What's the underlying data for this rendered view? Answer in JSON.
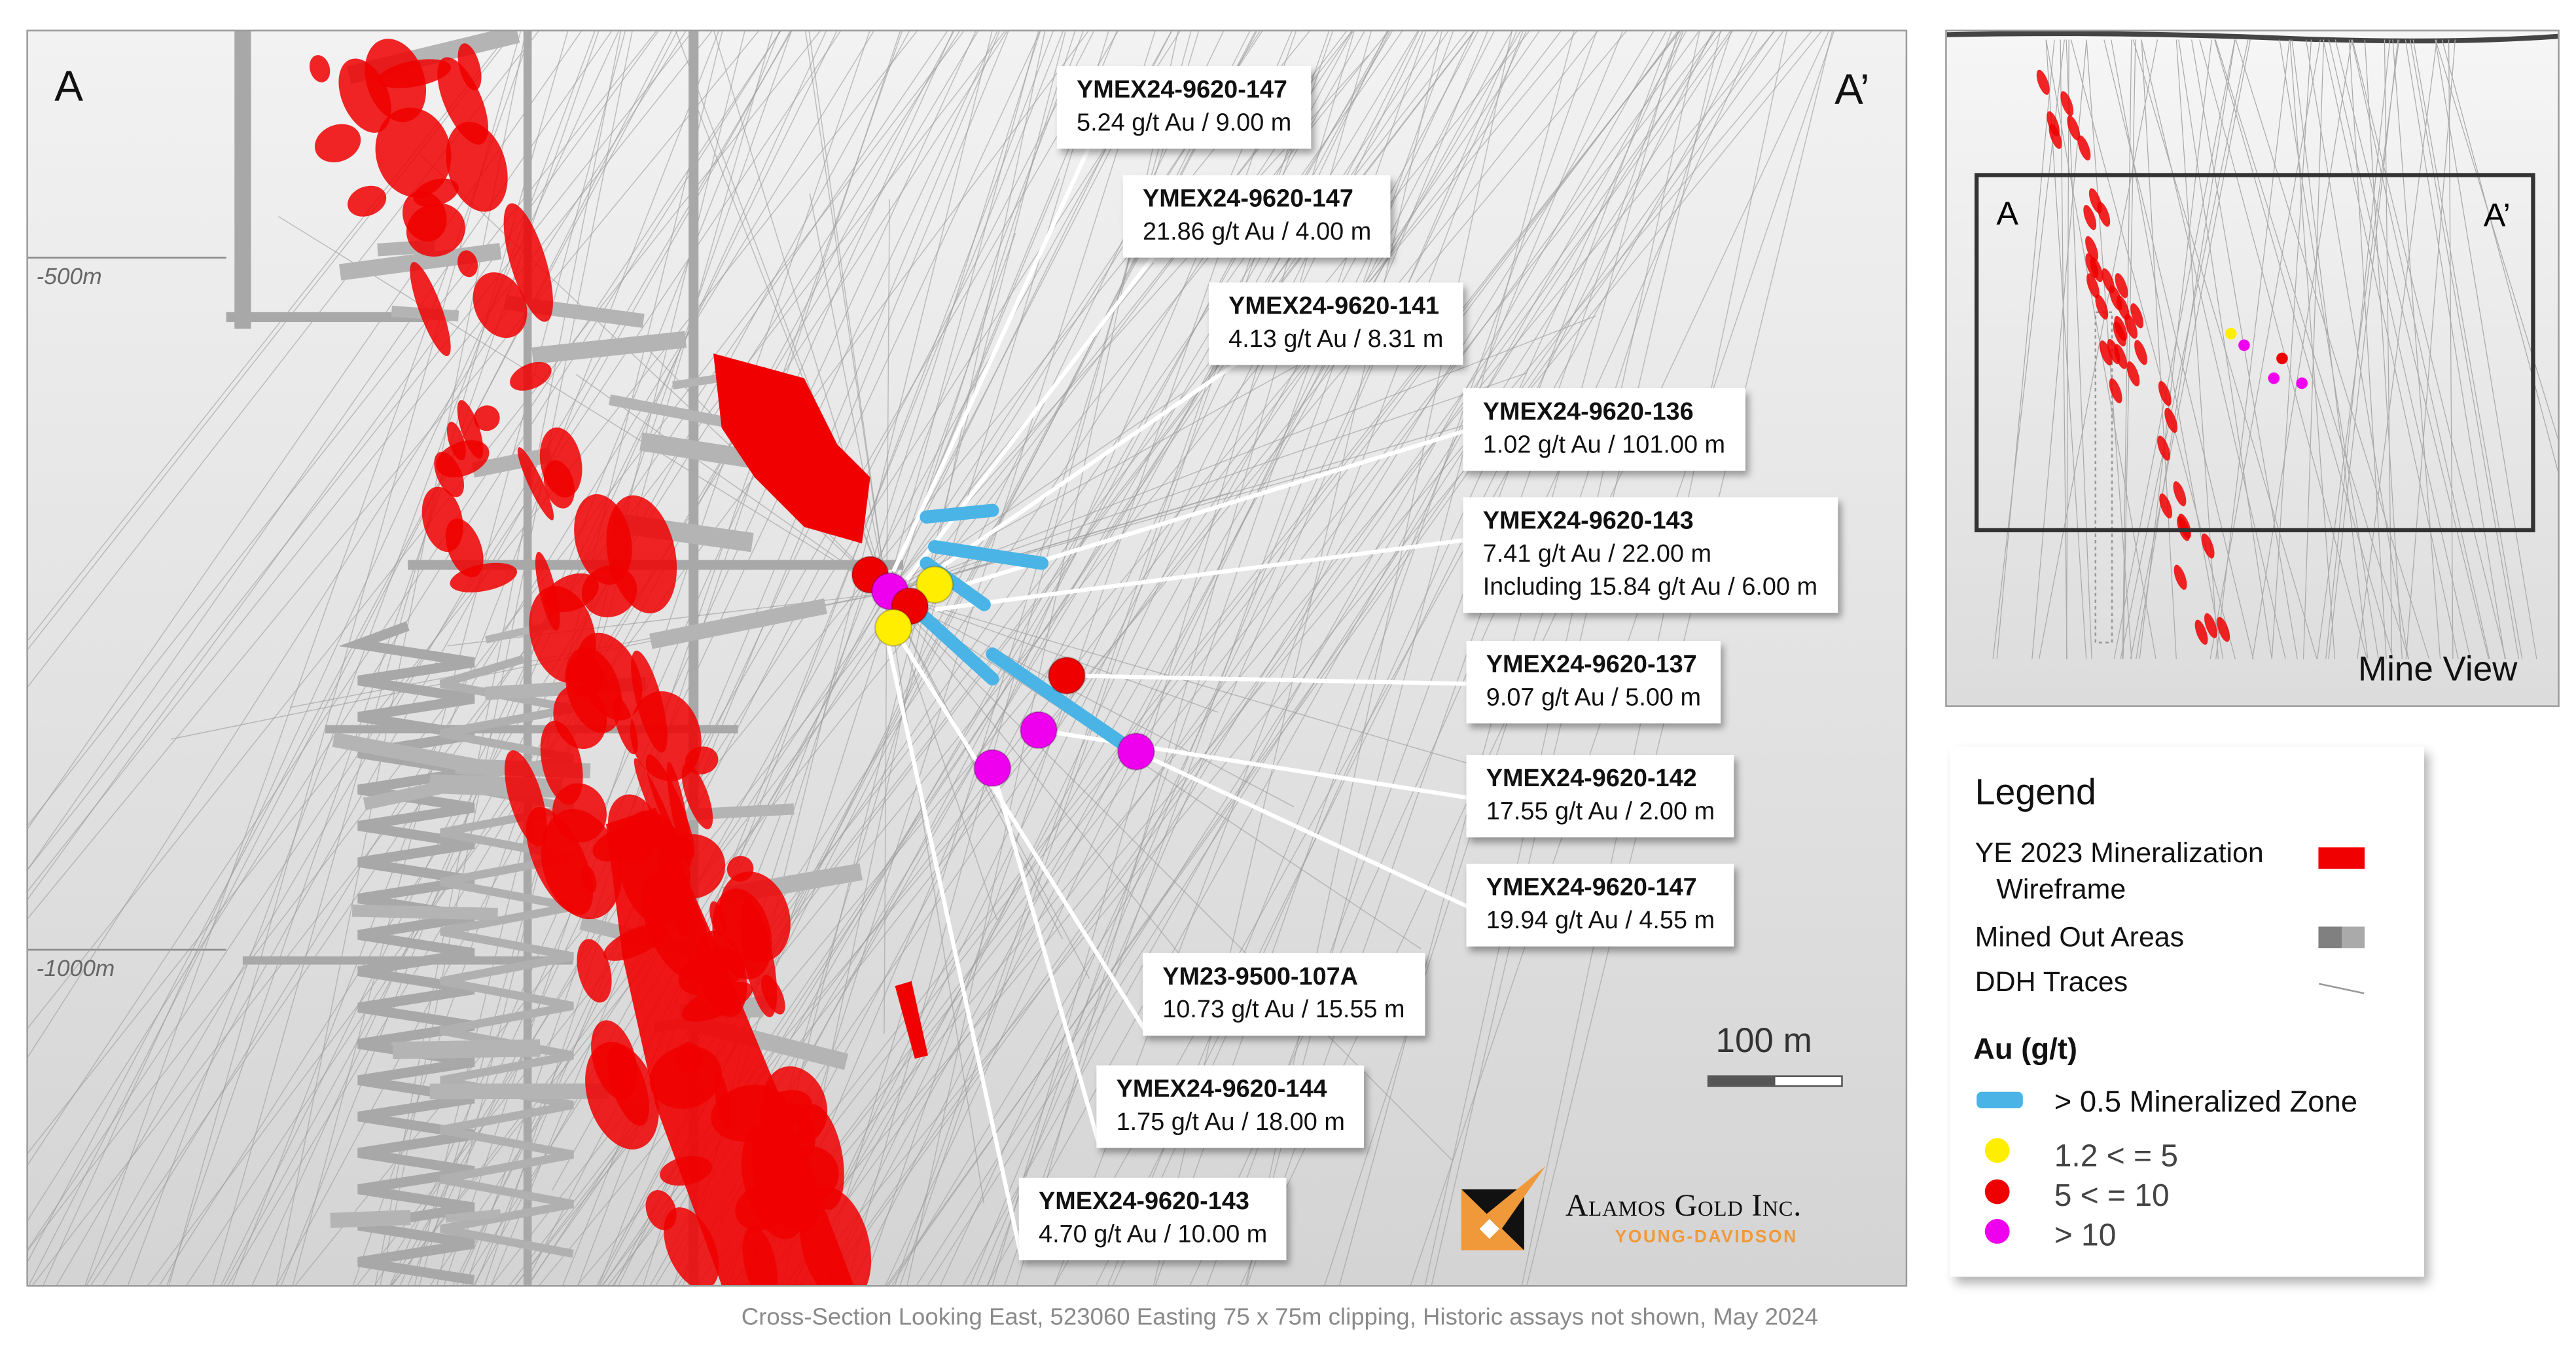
{
  "main_view": {
    "section_left": "A",
    "section_right": "A’",
    "depth_labels": [
      "-500m",
      "-1000m"
    ],
    "scale_bar": "100 m",
    "callouts": [
      {
        "hole": "YMEX24-9620-147",
        "lines": [
          "5.24 g/t Au / 9.00 m"
        ]
      },
      {
        "hole": "YMEX24-9620-147",
        "lines": [
          "21.86 g/t Au / 4.00 m"
        ]
      },
      {
        "hole": "YMEX24-9620-141",
        "lines": [
          "4.13 g/t Au / 8.31 m"
        ]
      },
      {
        "hole": "YMEX24-9620-136",
        "lines": [
          "1.02 g/t Au / 101.00 m"
        ]
      },
      {
        "hole": "YMEX24-9620-143",
        "lines": [
          "7.41 g/t Au / 22.00 m",
          "Including 15.84 g/t Au / 6.00 m"
        ]
      },
      {
        "hole": "YMEX24-9620-137",
        "lines": [
          "9.07 g/t Au / 5.00 m"
        ]
      },
      {
        "hole": "YMEX24-9620-142",
        "lines": [
          "17.55 g/t Au / 2.00 m"
        ]
      },
      {
        "hole": "YMEX24-9620-147",
        "lines": [
          "19.94 g/t Au / 4.55 m"
        ]
      },
      {
        "hole": "YM23-9500-107A",
        "lines": [
          "10.73 g/t Au / 15.55 m"
        ]
      },
      {
        "hole": "YMEX24-9620-144",
        "lines": [
          "1.75 g/t Au / 18.00 m"
        ]
      },
      {
        "hole": "YMEX24-9620-143",
        "lines": [
          "4.70 g/t Au / 10.00 m"
        ]
      }
    ]
  },
  "mine_view": {
    "section_left": "A",
    "section_right": "A’",
    "label": "Mine View"
  },
  "legend": {
    "title": "Legend",
    "mineralization": "YE 2023 Mineralization",
    "mineralization_2": "Wireframe",
    "mined_out": "Mined Out Areas",
    "ddh": "DDH Traces",
    "au_title": "Au (g/t)",
    "zone": "> 0.5 Mineralized Zone",
    "grade_1": "1.2 < = 5",
    "grade_2": "5 < = 10",
    "grade_3": "> 10"
  },
  "colors": {
    "mineralization": "#f00000",
    "mined_out": "#9a9a9a",
    "zone": "#4ab4e6",
    "grade_low": "#ffee00",
    "grade_mid": "#ee0000",
    "grade_high": "#ee00ee",
    "logo_orange": "#f0993a"
  },
  "logo": {
    "company": "Alamos Gold Inc.",
    "site": "YOUNG-DAVIDSON"
  },
  "footer": "Cross-Section Looking East, 523060 Easting 75 x 75m clipping, Historic assays not shown, May 2024"
}
